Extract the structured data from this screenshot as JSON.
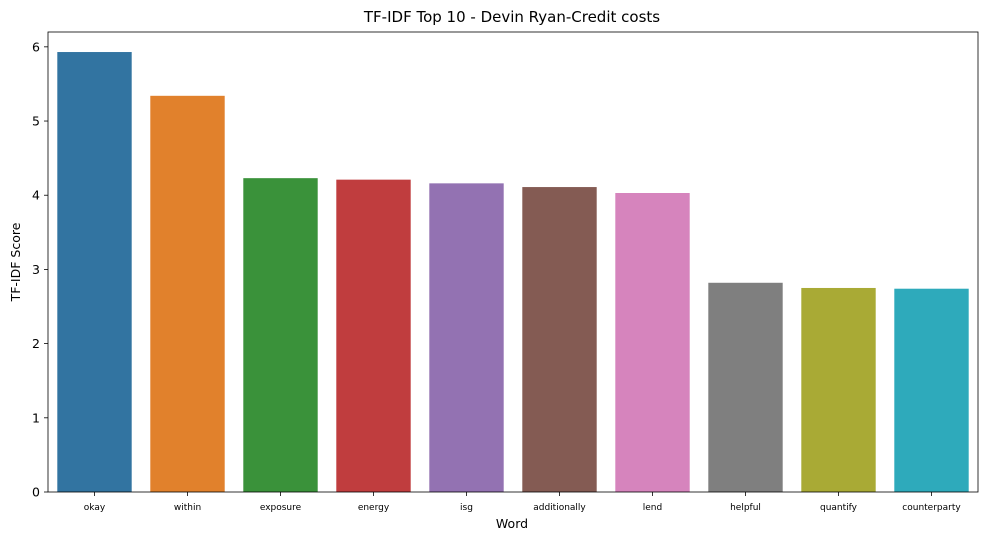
{
  "chart_data": {
    "type": "bar",
    "title": "TF-IDF Top 10 - Devin Ryan-Credit costs",
    "xlabel": "Word",
    "ylabel": "TF-IDF Score",
    "ylim": [
      0,
      6.2
    ],
    "yticks": [
      "0",
      "1",
      "2",
      "3",
      "4",
      "5",
      "6"
    ],
    "categories": [
      "okay",
      "within",
      "exposure",
      "energy",
      "isg",
      "additionally",
      "lend",
      "helpful",
      "quantify",
      "counterparty"
    ],
    "values": [
      5.93,
      5.34,
      4.23,
      4.21,
      4.16,
      4.11,
      4.03,
      2.82,
      2.75,
      2.74
    ],
    "colors": [
      "#3274a1",
      "#e1812c",
      "#3a923a",
      "#c03d3e",
      "#9372b2",
      "#845b53",
      "#d684bd",
      "#7f7f7f",
      "#a9aa35",
      "#2eaabb"
    ],
    "grid": false,
    "legend": "none"
  }
}
